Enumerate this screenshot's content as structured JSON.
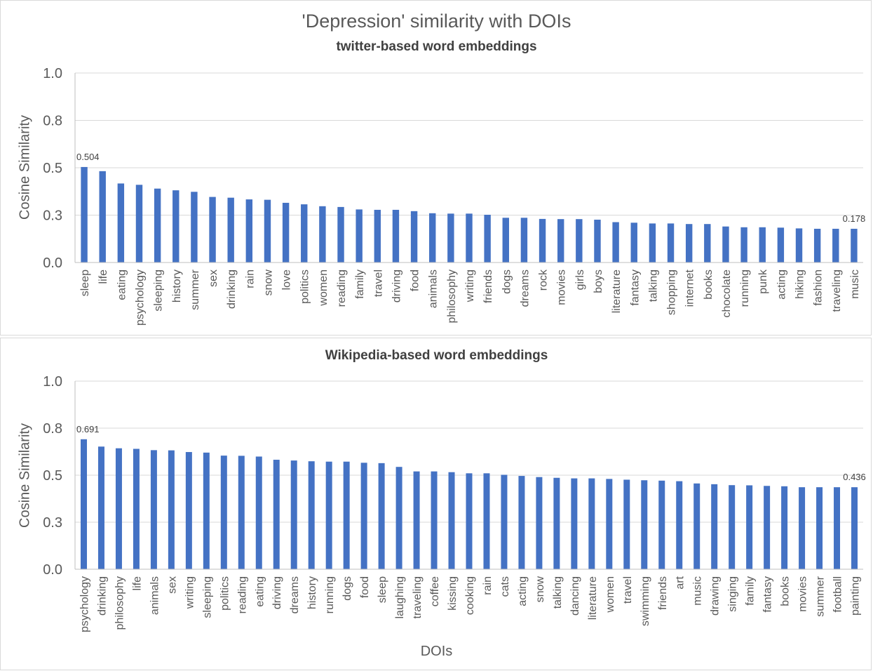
{
  "chart_data": [
    {
      "type": "bar",
      "title": "'Depression' similarity with DOIs",
      "subtitle": "twitter-based word embeddings",
      "xlabel": "",
      "ylabel": "Cosine Similarity",
      "ylim": [
        0,
        1.0
      ],
      "yticks": [
        "1.0",
        "0.8",
        "0.5",
        "0.3",
        "0.0"
      ],
      "grid": true,
      "bar_color": "#4472c4",
      "categories": [
        "sleep",
        "life",
        "eating",
        "psychology",
        "sleeping",
        "history",
        "summer",
        "sex",
        "drinking",
        "rain",
        "snow",
        "love",
        "politics",
        "women",
        "reading",
        "family",
        "travel",
        "driving",
        "food",
        "animals",
        "philosophy",
        "writing",
        "friends",
        "dogs",
        "dreams",
        "rock",
        "movies",
        "girls",
        "boys",
        "literature",
        "fantasy",
        "talking",
        "shopping",
        "internet",
        "books",
        "chocolate",
        "running",
        "punk",
        "acting",
        "hiking",
        "fashion",
        "traveling",
        "music"
      ],
      "values": [
        0.504,
        0.482,
        0.417,
        0.41,
        0.39,
        0.381,
        0.373,
        0.346,
        0.342,
        0.333,
        0.331,
        0.315,
        0.307,
        0.297,
        0.293,
        0.28,
        0.278,
        0.278,
        0.271,
        0.26,
        0.258,
        0.258,
        0.252,
        0.236,
        0.236,
        0.23,
        0.229,
        0.229,
        0.226,
        0.213,
        0.21,
        0.206,
        0.206,
        0.203,
        0.203,
        0.19,
        0.186,
        0.186,
        0.184,
        0.18,
        0.178,
        0.178,
        0.178
      ],
      "annotations": [
        {
          "index": 0,
          "text": "0.504"
        },
        {
          "index": 42,
          "text": "0.178"
        }
      ]
    },
    {
      "type": "bar",
      "title": "",
      "subtitle": "Wikipedia-based word embeddings",
      "xlabel": "DOIs",
      "ylabel": "Cosine Similarity",
      "ylim": [
        0,
        1.0
      ],
      "yticks": [
        "1.0",
        "0.8",
        "0.5",
        "0.3",
        "0.0"
      ],
      "grid": true,
      "bar_color": "#4472c4",
      "categories": [
        "psychology",
        "drinking",
        "philosophy",
        "life",
        "animals",
        "sex",
        "writing",
        "sleeping",
        "politics",
        "reading",
        "eating",
        "driving",
        "dreams",
        "history",
        "running",
        "dogs",
        "food",
        "sleep",
        "laughing",
        "traveling",
        "coffee",
        "kissing",
        "cooking",
        "rain",
        "cats",
        "acting",
        "snow",
        "talking",
        "dancing",
        "literature",
        "women",
        "travel",
        "swimming",
        "friends",
        "art",
        "music",
        "drawing",
        "singing",
        "family",
        "fantasy",
        "books",
        "movies",
        "summer",
        "football",
        "painting"
      ],
      "values": [
        0.691,
        0.652,
        0.643,
        0.64,
        0.633,
        0.632,
        0.623,
        0.62,
        0.604,
        0.603,
        0.599,
        0.582,
        0.578,
        0.574,
        0.572,
        0.572,
        0.566,
        0.564,
        0.544,
        0.52,
        0.52,
        0.516,
        0.51,
        0.51,
        0.502,
        0.496,
        0.49,
        0.486,
        0.483,
        0.483,
        0.48,
        0.476,
        0.473,
        0.471,
        0.468,
        0.456,
        0.452,
        0.447,
        0.446,
        0.443,
        0.441,
        0.436,
        0.436,
        0.436,
        0.436
      ],
      "annotations": [
        {
          "index": 0,
          "text": "0.691"
        },
        {
          "index": 44,
          "text": "0.436"
        }
      ]
    }
  ]
}
